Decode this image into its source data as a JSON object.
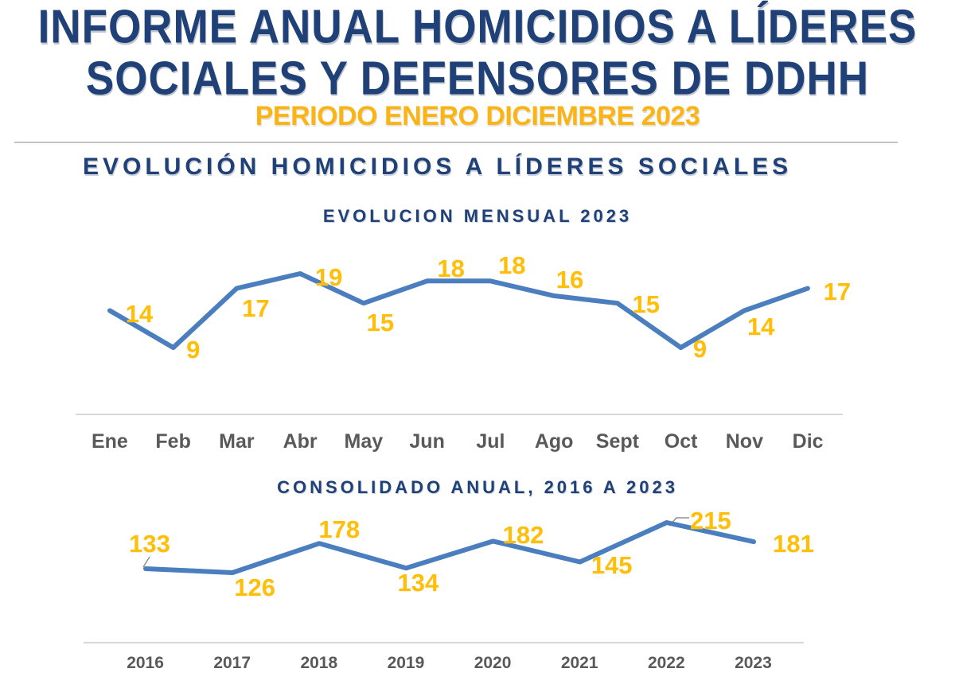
{
  "header": {
    "title_line1": "INFORME ANUAL HOMICIDIOS A LÍDERES",
    "title_line2": "SOCIALES Y DEFENSORES DE DDHH",
    "subtitle": "PERIODO ENERO DICIEMBRE 2023"
  },
  "section": {
    "title": "EVOLUCIÓN HOMICIDIOS A LÍDERES SOCIALES"
  },
  "colors": {
    "title_navy": "#1F4177",
    "subtitle_yellow": "#FCB415",
    "label_yellow": "#FFBF08",
    "line_blue": "#4A7EBF",
    "axis_gray": "#D8D8D8",
    "divider_gray": "#C3C3C3",
    "tick_label_gray": "#595959",
    "leader_gray": "#8F8F8F"
  },
  "chart_data": [
    {
      "type": "line",
      "title": "EVOLUCION MENSUAL 2023",
      "categories": [
        "Ene",
        "Feb",
        "Mar",
        "Abr",
        "May",
        "Jun",
        "Jul",
        "Ago",
        "Sept",
        "Oct",
        "Nov",
        "Dic"
      ],
      "values": [
        14,
        9,
        17,
        19,
        15,
        18,
        18,
        16,
        15,
        9,
        14,
        17
      ],
      "ylim": [
        9,
        19
      ],
      "gridlines": false,
      "legend": "none",
      "data_labels": "shown above/below points in gold"
    },
    {
      "type": "line",
      "title": "CONSOLIDADO ANUAL, 2016 A 2023",
      "categories": [
        "2016",
        "2017",
        "2018",
        "2019",
        "2020",
        "2021",
        "2022",
        "2023"
      ],
      "values": [
        133,
        126,
        178,
        134,
        182,
        145,
        215,
        181
      ],
      "ylim": [
        126,
        215
      ],
      "gridlines": false,
      "legend": "none",
      "data_labels": "shown above/below points in gold, leader lines on 133 and 215"
    }
  ]
}
